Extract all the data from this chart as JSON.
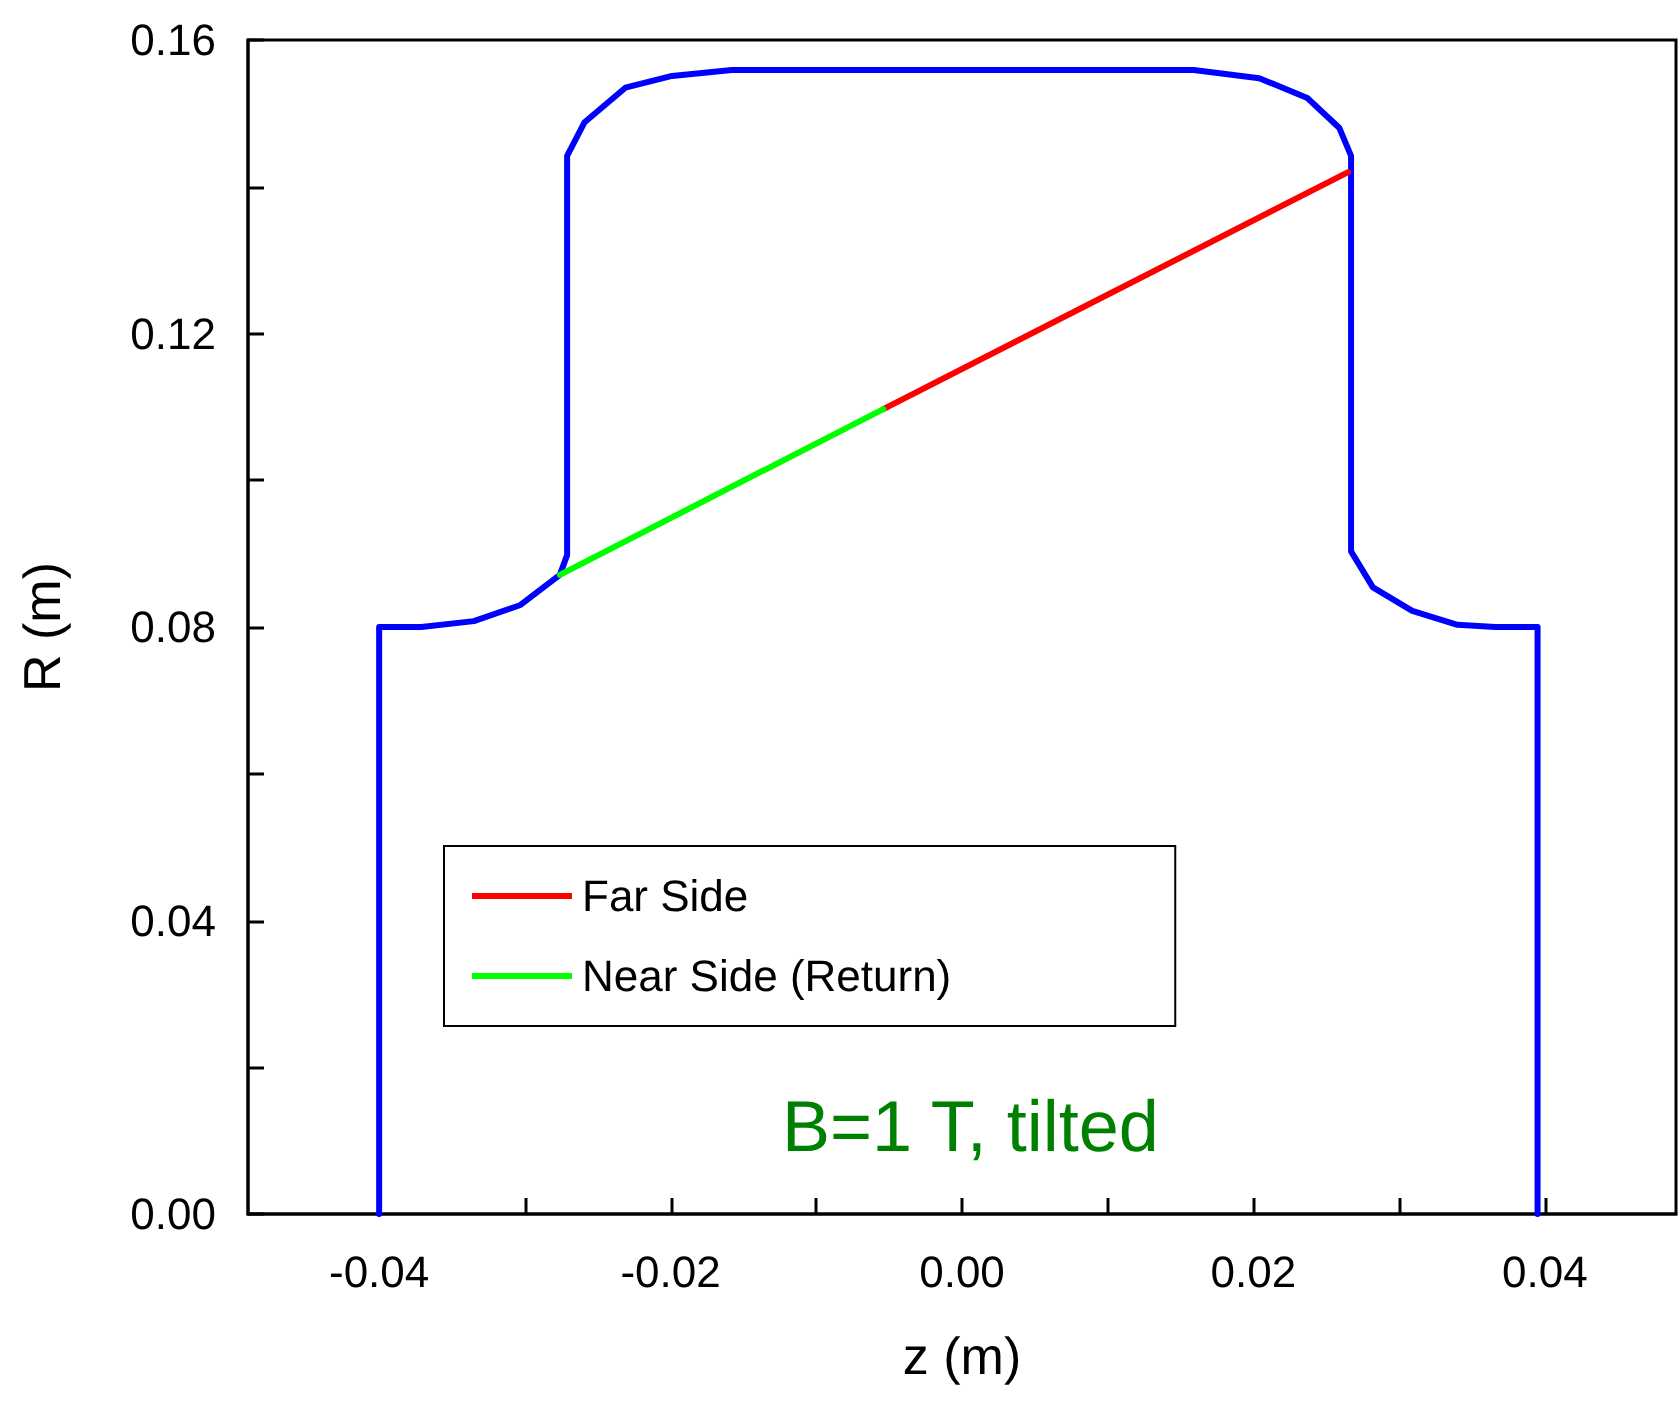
{
  "chart_data": {
    "type": "line",
    "xlabel": "z (m)",
    "ylabel": "R (m)",
    "xlim": [
      -0.049,
      0.049
    ],
    "ylim": [
      0,
      0.16
    ],
    "xticks": [
      {
        "value": -0.04,
        "label": "-0.04"
      },
      {
        "value": -0.03,
        "label": null
      },
      {
        "value": -0.02,
        "label": "-0.02"
      },
      {
        "value": -0.01,
        "label": null
      },
      {
        "value": 0,
        "label": "0.00"
      },
      {
        "value": 0.01,
        "label": null
      },
      {
        "value": 0.02,
        "label": "0.02"
      },
      {
        "value": 0.03,
        "label": null
      },
      {
        "value": 0.04,
        "label": "0.04"
      }
    ],
    "yticks": [
      {
        "value": 0,
        "label": "0.00"
      },
      {
        "value": 0.02,
        "label": null
      },
      {
        "value": 0.04,
        "label": "0.04"
      },
      {
        "value": 0.06,
        "label": null
      },
      {
        "value": 0.08,
        "label": "0.08"
      },
      {
        "value": 0.1,
        "label": null
      },
      {
        "value": 0.12,
        "label": "0.12"
      },
      {
        "value": 0.14,
        "label": null
      },
      {
        "value": 0.16,
        "label": "0.16"
      }
    ],
    "series": [
      {
        "color": "#0000ff",
        "x": [
          -0.04,
          -0.04,
          -0.0371,
          -0.0335,
          -0.0303,
          -0.0276,
          -0.0271,
          -0.0271,
          -0.0259,
          -0.0231,
          -0.0199,
          -0.0158,
          0.0159,
          0.0204,
          0.0237,
          0.0259,
          0.0267,
          0.0267,
          0.0282,
          0.0309,
          0.034,
          0.0366,
          0.0395,
          0.0395
        ],
        "values": [
          0,
          0.08,
          0.08,
          0.0808,
          0.083,
          0.0871,
          0.0898,
          0.1442,
          0.1488,
          0.1535,
          0.1551,
          0.1559,
          0.1559,
          0.1548,
          0.1521,
          0.148,
          0.1442,
          0.0903,
          0.0854,
          0.0822,
          0.0803,
          0.08,
          0.08,
          0
        ]
      },
      {
        "name": "Far Side",
        "color": "#ff0000",
        "x": [
          -0.0054,
          0.0265
        ],
        "values": [
          0.1097,
          0.142
        ]
      },
      {
        "name": "Near Side (Return)",
        "color": "#00ff00",
        "x": [
          -0.0276,
          -0.0054
        ],
        "values": [
          0.0871,
          0.1097
        ]
      }
    ],
    "legend": "bottom left",
    "grid": false,
    "marker": "none",
    "line_style": "solid",
    "annotations": [
      "B=1 T, tilted"
    ]
  }
}
